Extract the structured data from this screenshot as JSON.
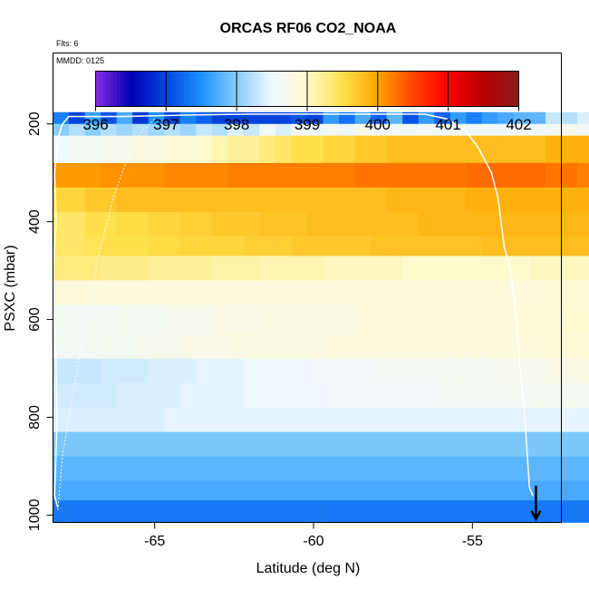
{
  "chart_data": {
    "type": "heatmap",
    "title": "ORCAS RF06 CO2_NOAA",
    "annotations": [
      "Flts: 6",
      "MMDD: 0125"
    ],
    "xlabel": "Latitude (deg N)",
    "ylabel": "PSXC (mbar)",
    "xlim": [
      -68.2,
      -52.2
    ],
    "ylim": [
      1015,
      55
    ],
    "y_reversed": true,
    "x_ticks": [
      -65,
      -60,
      -55
    ],
    "y_ticks": [
      200,
      400,
      600,
      800,
      1000
    ],
    "colorbar": {
      "range": [
        396,
        402
      ],
      "ticks": [
        396,
        397,
        398,
        399,
        400,
        401,
        402
      ],
      "colors": [
        "#8a2be2",
        "#0000b3",
        "#0044dd",
        "#1e90ff",
        "#87cefa",
        "#f0f8ff",
        "#fffacd",
        "#ffe14d",
        "#ffa500",
        "#ff4500",
        "#ff0000",
        "#b30000",
        "#8b1a1a"
      ]
    },
    "grid": false,
    "lat_start": -68.2,
    "lat_step": 0.5,
    "rows": [
      {
        "p_top": 176,
        "p_bot": 200,
        "values": [
          397.4,
          397.0,
          397.6,
          397.1,
          397.7,
          396.9,
          397.5,
          397.0,
          397.4,
          397.2,
          397.0,
          397.0,
          397.0,
          397.0,
          397.0,
          397.1,
          397.0,
          397.6,
          397.3,
          397.7,
          397.2,
          397.8,
          397.1,
          397.6,
          397.2,
          397.6,
          397.4,
          397.6,
          397.7,
          397.8,
          397.8,
          398.3,
          398.2,
          398.4,
          398.1,
          398.6,
          398.0,
          397.9,
          398.1
        ]
      },
      {
        "p_top": 200,
        "p_bot": 224,
        "values": [
          398.0,
          398.2,
          398.0,
          398.2,
          398.1,
          398.2,
          398.1,
          398.2,
          398.1,
          398.3,
          398.2,
          398.4,
          398.3,
          398.5,
          398.4,
          398.6,
          398.5,
          398.6,
          398.5,
          398.7,
          398.6,
          398.6,
          398.5,
          398.6,
          398.5,
          398.6,
          398.5,
          398.5,
          398.5,
          398.6,
          398.5,
          398.6,
          398.7,
          398.6,
          398.8,
          398.7,
          398.9,
          398.9,
          398.9,
          399.0
        ]
      },
      {
        "p_top": 224,
        "p_bot": 280,
        "values": [
          398.5,
          398.6,
          398.6,
          398.7,
          398.7,
          398.8,
          398.8,
          398.9,
          398.9,
          399.0,
          399.1,
          399.2,
          399.2,
          399.3,
          399.4,
          399.5,
          399.5,
          399.6,
          399.6,
          399.7,
          399.7,
          399.8,
          399.8,
          399.8,
          399.8,
          399.8,
          399.8,
          399.8,
          399.8,
          399.8,
          399.8,
          399.9,
          399.9,
          399.9,
          400.0,
          400.0,
          400.0,
          399.9,
          399.8,
          399.7,
          399.5
        ]
      },
      {
        "p_top": 280,
        "p_bot": 330,
        "values": [
          400.05,
          400.05,
          400.05,
          400.1,
          400.1,
          400.1,
          400.1,
          400.15,
          400.15,
          400.15,
          400.15,
          400.2,
          400.2,
          400.2,
          400.2,
          400.2,
          400.2,
          400.2,
          400.2,
          400.25,
          400.25,
          400.25,
          400.25,
          400.25,
          400.25,
          400.25,
          400.3,
          400.3,
          400.3,
          400.3,
          400.3,
          400.25,
          400.25,
          400.2,
          400.15,
          400.15,
          400.1,
          400.1,
          400.05,
          400.05,
          400.0,
          399.9
        ]
      },
      {
        "p_top": 330,
        "p_bot": 380,
        "values": [
          399.6,
          399.6,
          399.7,
          399.7,
          399.8,
          399.8,
          399.8,
          399.8,
          399.8,
          399.8,
          399.8,
          399.8,
          399.8,
          399.8,
          399.8,
          399.8,
          399.8,
          399.8,
          399.8,
          399.8,
          399.8,
          399.85,
          399.85,
          399.85,
          399.85,
          399.85,
          399.9,
          399.9,
          399.9,
          399.9,
          399.9,
          399.9,
          399.9,
          399.9,
          399.9,
          399.9,
          399.9,
          399.9,
          399.9,
          399.9,
          399.9,
          399.9,
          399.9
        ]
      },
      {
        "p_top": 380,
        "p_bot": 430,
        "values": [
          399.4,
          399.4,
          399.5,
          399.5,
          399.55,
          399.55,
          399.6,
          399.6,
          399.65,
          399.65,
          399.7,
          399.7,
          399.7,
          399.75,
          399.75,
          399.75,
          399.8,
          399.8,
          399.8,
          399.8,
          399.8,
          399.8,
          399.8,
          399.85,
          399.85,
          399.85,
          399.85,
          399.85,
          399.85,
          399.85,
          399.85,
          399.85,
          399.85,
          399.85,
          399.85,
          399.9,
          399.9,
          399.9,
          399.9,
          399.9,
          399.9,
          399.9,
          399.9,
          399.9
        ]
      },
      {
        "p_top": 430,
        "p_bot": 470,
        "values": [
          399.4,
          399.4,
          399.45,
          399.5,
          399.5,
          399.5,
          399.55,
          399.55,
          399.6,
          399.6,
          399.6,
          399.6,
          399.65,
          399.65,
          399.65,
          399.7,
          399.7,
          399.7,
          399.7,
          399.7,
          399.75,
          399.75,
          399.75,
          399.75,
          399.75,
          399.75,
          399.75,
          399.8,
          399.8,
          399.8,
          399.8,
          399.8,
          399.8,
          399.8,
          399.8,
          399.8,
          399.8,
          399.85,
          399.85,
          399.85,
          399.85,
          399.85,
          399.85,
          399.85,
          399.85
        ]
      },
      {
        "p_top": 470,
        "p_bot": 520,
        "values": [
          399.3,
          399.3,
          399.3,
          399.25,
          399.25,
          399.25,
          399.2,
          399.2,
          399.2,
          399.2,
          399.15,
          399.15,
          399.15,
          399.1,
          399.1,
          399.1,
          399.1,
          399.05,
          399.05,
          399.05,
          399.05,
          399.05,
          399.0,
          399.0,
          399.0,
          399.0,
          399.0,
          399.0,
          399.0,
          399.0,
          399.05,
          399.05,
          399.05,
          399.05,
          399.05,
          399.1,
          399.1,
          399.1,
          399.15,
          399.15,
          399.2,
          399.2,
          399.2,
          399.25,
          399.3
        ]
      },
      {
        "p_top": 520,
        "p_bot": 570,
        "values": [
          398.85,
          398.85,
          398.85,
          398.85,
          398.85,
          398.85,
          398.85,
          398.85,
          398.85,
          398.85,
          398.85,
          398.85,
          398.85,
          398.85,
          398.85,
          398.85,
          398.85,
          398.85,
          398.85,
          398.85,
          398.85,
          398.85,
          398.85,
          398.85,
          398.85,
          398.85,
          398.85,
          398.85,
          398.85,
          398.85,
          398.85,
          398.9,
          398.9,
          398.9,
          398.9,
          398.95,
          398.95,
          398.95,
          399.0,
          399.0,
          399.05,
          399.1,
          399.1,
          399.15,
          399.2,
          399.25
        ]
      },
      {
        "p_top": 570,
        "p_bot": 630,
        "values": [
          398.6,
          398.6,
          398.6,
          398.6,
          398.65,
          398.65,
          398.65,
          398.7,
          398.7,
          398.7,
          398.75,
          398.75,
          398.75,
          398.8,
          398.8,
          398.8,
          398.8,
          398.8,
          398.8,
          398.85,
          398.85,
          398.85,
          398.85,
          398.85,
          398.85,
          398.85,
          398.85,
          398.85,
          398.85,
          398.9,
          398.9,
          398.9,
          398.95,
          398.95,
          399.0,
          399.0,
          399.05,
          399.1,
          399.15,
          399.2,
          399.25,
          399.3,
          399.35,
          399.4,
          399.45,
          399.5
        ]
      },
      {
        "p_top": 630,
        "p_bot": 680,
        "values": [
          398.6,
          398.6,
          398.6,
          398.65,
          398.65,
          398.7,
          398.7,
          398.7,
          398.75,
          398.75,
          398.75,
          398.8,
          398.8,
          398.8,
          398.8,
          398.8,
          398.8,
          398.85,
          398.85,
          398.85,
          398.85,
          398.85,
          398.85,
          398.85,
          398.85,
          398.85,
          398.85,
          398.85,
          398.85,
          398.85,
          398.85,
          398.9,
          398.9,
          398.9,
          398.95,
          398.95,
          399.0,
          399.05,
          399.1,
          399.15,
          399.2,
          399.3,
          399.35,
          399.4,
          399.45,
          399.55
        ]
      },
      {
        "p_top": 680,
        "p_bot": 730,
        "values": [
          398.3,
          398.3,
          398.3,
          398.35,
          398.35,
          398.35,
          398.4,
          398.4,
          398.4,
          398.45,
          398.45,
          398.45,
          398.5,
          398.5,
          398.5,
          398.5,
          398.55,
          398.55,
          398.55,
          398.55,
          398.6,
          398.6,
          398.6,
          398.6,
          398.6,
          398.65,
          398.65,
          398.65,
          398.7,
          398.7,
          398.7,
          398.75,
          398.75,
          398.8,
          398.8,
          398.85,
          398.85,
          398.9,
          398.95,
          399.0,
          399.05,
          399.1,
          399.15,
          399.2,
          399.3,
          399.35,
          399.4
        ]
      },
      {
        "p_top": 730,
        "p_bot": 780,
        "values": [
          398.35,
          398.35,
          398.35,
          398.35,
          398.4,
          398.4,
          398.4,
          398.4,
          398.45,
          398.45,
          398.45,
          398.45,
          398.5,
          398.5,
          398.5,
          398.5,
          398.5,
          398.55,
          398.55,
          398.55,
          398.55,
          398.55,
          398.55,
          398.55,
          398.6,
          398.6,
          398.6,
          398.6,
          398.6,
          398.6,
          398.65,
          398.65,
          398.65,
          398.65,
          398.7,
          398.7,
          398.7,
          398.75,
          398.75,
          398.8,
          398.8,
          398.85,
          398.85,
          398.9,
          398.9,
          398.95,
          399.0
        ]
      },
      {
        "p_top": 780,
        "p_bot": 830,
        "values": [
          398.4,
          398.4,
          398.4,
          398.4,
          398.4,
          398.4,
          398.4,
          398.45,
          398.45,
          398.45,
          398.45,
          398.45,
          398.45,
          398.45,
          398.45,
          398.45,
          398.45,
          398.45,
          398.45,
          398.45,
          398.45,
          398.45,
          398.45,
          398.45,
          398.45,
          398.45,
          398.45,
          398.45,
          398.45,
          398.45,
          398.45,
          398.45,
          398.45,
          398.45,
          398.45,
          398.45,
          398.45,
          398.45,
          398.45,
          398.45,
          398.45,
          398.45,
          398.45,
          398.45,
          398.45,
          398.45,
          398.45
        ]
      },
      {
        "p_top": 830,
        "p_bot": 880,
        "values": [
          397.95,
          397.95,
          397.95,
          397.95,
          397.95,
          397.95,
          397.95,
          397.95,
          397.95,
          397.95,
          397.95,
          397.95,
          397.95,
          397.95,
          397.95,
          397.95,
          397.95,
          397.95,
          397.95,
          397.95,
          397.95,
          397.95,
          397.95,
          397.95,
          397.95,
          397.95,
          397.95,
          397.95,
          397.95,
          397.95,
          397.95,
          397.95,
          397.95,
          397.95,
          397.95,
          397.95,
          397.95,
          397.95,
          397.95,
          397.95,
          397.95,
          397.95,
          397.95,
          397.95,
          397.95,
          397.95,
          397.95
        ]
      },
      {
        "p_top": 880,
        "p_bot": 930,
        "values": [
          397.8,
          397.8,
          397.8,
          397.8,
          397.8,
          397.8,
          397.8,
          397.8,
          397.8,
          397.8,
          397.8,
          397.8,
          397.8,
          397.8,
          397.8,
          397.8,
          397.8,
          397.8,
          397.8,
          397.8,
          397.8,
          397.8,
          397.8,
          397.8,
          397.8,
          397.8,
          397.8,
          397.8,
          397.8,
          397.8,
          397.8,
          397.8,
          397.8,
          397.8,
          397.8,
          397.8,
          397.8,
          397.8,
          397.8,
          397.8,
          397.8,
          397.8,
          397.8,
          397.8,
          397.8,
          397.8,
          397.8
        ]
      },
      {
        "p_top": 930,
        "p_bot": 970,
        "values": [
          397.7,
          397.7,
          397.7,
          397.7,
          397.7,
          397.7,
          397.7,
          397.7,
          397.7,
          397.7,
          397.7,
          397.7,
          397.7,
          397.7,
          397.7,
          397.7,
          397.7,
          397.7,
          397.7,
          397.7,
          397.7,
          397.7,
          397.7,
          397.7,
          397.7,
          397.7,
          397.7,
          397.7,
          397.7,
          397.7,
          397.7,
          397.7,
          397.7,
          397.7,
          397.7,
          397.7,
          397.7,
          397.7,
          397.7,
          397.7,
          397.7,
          397.7,
          397.7,
          397.7,
          397.7,
          397.7,
          397.7,
          397.7
        ]
      },
      {
        "p_top": 970,
        "p_bot": 1015,
        "values": [
          397.35,
          397.35,
          397.35,
          397.35,
          397.35,
          397.35,
          397.35,
          397.35,
          397.35,
          397.35,
          397.35,
          397.35,
          397.35,
          397.35,
          397.35,
          397.35,
          397.35,
          397.35,
          397.35,
          397.35,
          397.35,
          397.35,
          397.35,
          397.35,
          397.35,
          397.35,
          397.35,
          397.35,
          397.35,
          397.35,
          397.35,
          397.35,
          397.35,
          397.35,
          397.35,
          397.35,
          397.35,
          397.35,
          397.35,
          397.35,
          397.35,
          397.35,
          397.35,
          397.35,
          397.35,
          397.35,
          397.35,
          397.35
        ]
      }
    ],
    "flight_track": [
      [
        -68.05,
        985
      ],
      [
        -68.15,
        960
      ],
      [
        -68.12,
        900
      ],
      [
        -68.08,
        820
      ],
      [
        -68.1,
        700
      ],
      [
        -68.15,
        600
      ],
      [
        -68.2,
        500
      ],
      [
        -68.1,
        400
      ],
      [
        -68.15,
        300
      ],
      [
        -68.05,
        230
      ],
      [
        -67.9,
        200
      ],
      [
        -67.7,
        185
      ],
      [
        -66.0,
        185
      ],
      [
        -64.0,
        182
      ],
      [
        -62.0,
        180
      ],
      [
        -60.0,
        180
      ],
      [
        -58.0,
        180
      ],
      [
        -56.5,
        180
      ],
      [
        -55.8,
        190
      ],
      [
        -55.2,
        215
      ],
      [
        -54.8,
        250
      ],
      [
        -54.4,
        300
      ],
      [
        -54.2,
        350
      ],
      [
        -54.1,
        400
      ],
      [
        -54.0,
        450
      ],
      [
        -53.8,
        500
      ],
      [
        -53.7,
        550
      ],
      [
        -53.6,
        600
      ],
      [
        -53.5,
        700
      ],
      [
        -53.35,
        800
      ],
      [
        -53.25,
        900
      ],
      [
        -53.2,
        945
      ],
      [
        -53.1,
        960
      ]
    ],
    "flight_track_2": [
      [
        -68.05,
        990
      ],
      [
        -67.9,
        880
      ],
      [
        -67.6,
        760
      ],
      [
        -67.2,
        620
      ],
      [
        -66.8,
        480
      ],
      [
        -66.3,
        350
      ],
      [
        -65.8,
        260
      ],
      [
        -65.4,
        215
      ],
      [
        -65.0,
        190
      ]
    ],
    "end_arrow": {
      "lat": -53.0,
      "p_from": 940,
      "p_to": 1008
    }
  }
}
